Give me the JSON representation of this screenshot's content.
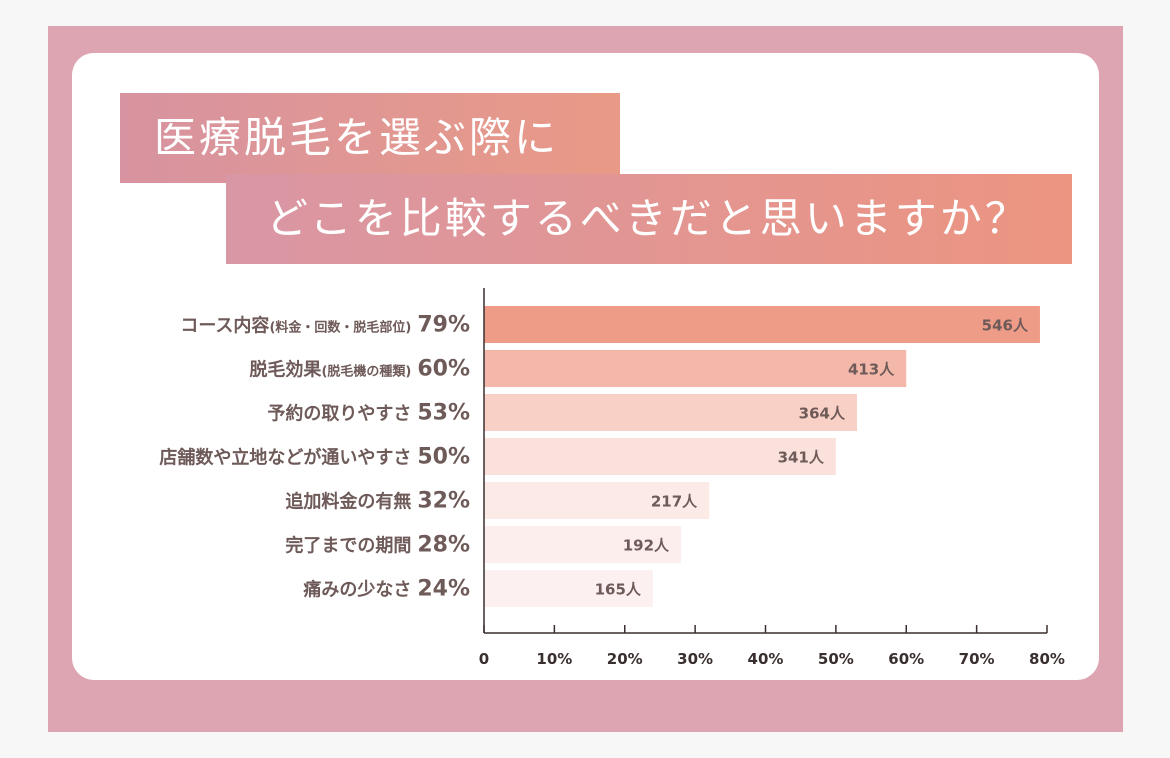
{
  "title_lines": [
    "医療脱毛を選ぶ際に",
    "どこを比較するべきだと思いますか？"
  ],
  "colors": {
    "frame": "#dca5b1",
    "bar_colors": [
      "#ee9c88",
      "#f4b8ab",
      "#f8d0c6",
      "#fae1dc",
      "#fbeae6",
      "#fceeed",
      "#fcf0f0"
    ]
  },
  "chart_data": {
    "type": "bar",
    "orientation": "horizontal",
    "categories": [
      {
        "main": "コース内容",
        "sub": "(料金・回数・脱毛部位)"
      },
      {
        "main": "脱毛効果",
        "sub": "(脱毛機の種類)"
      },
      {
        "main": "予約の取りやすさ",
        "sub": ""
      },
      {
        "main": "店舗数や立地などが通いやすさ",
        "sub": ""
      },
      {
        "main": "追加料金の有無",
        "sub": ""
      },
      {
        "main": "完了までの期間",
        "sub": ""
      },
      {
        "main": "痛みの少なさ",
        "sub": ""
      }
    ],
    "percents": [
      79,
      60,
      53,
      50,
      32,
      28,
      24
    ],
    "percent_labels": [
      "79%",
      "60%",
      "53%",
      "50%",
      "32%",
      "28%",
      "24%"
    ],
    "counts": [
      546,
      413,
      364,
      341,
      217,
      192,
      165
    ],
    "count_labels": [
      "546人",
      "413人",
      "364人",
      "341人",
      "217人",
      "192人",
      "165人"
    ],
    "xlim": [
      0,
      80
    ],
    "ticks": [
      "0",
      "10%",
      "20%",
      "30%",
      "40%",
      "50%",
      "60%",
      "70%",
      "80%"
    ],
    "grid": false
  }
}
